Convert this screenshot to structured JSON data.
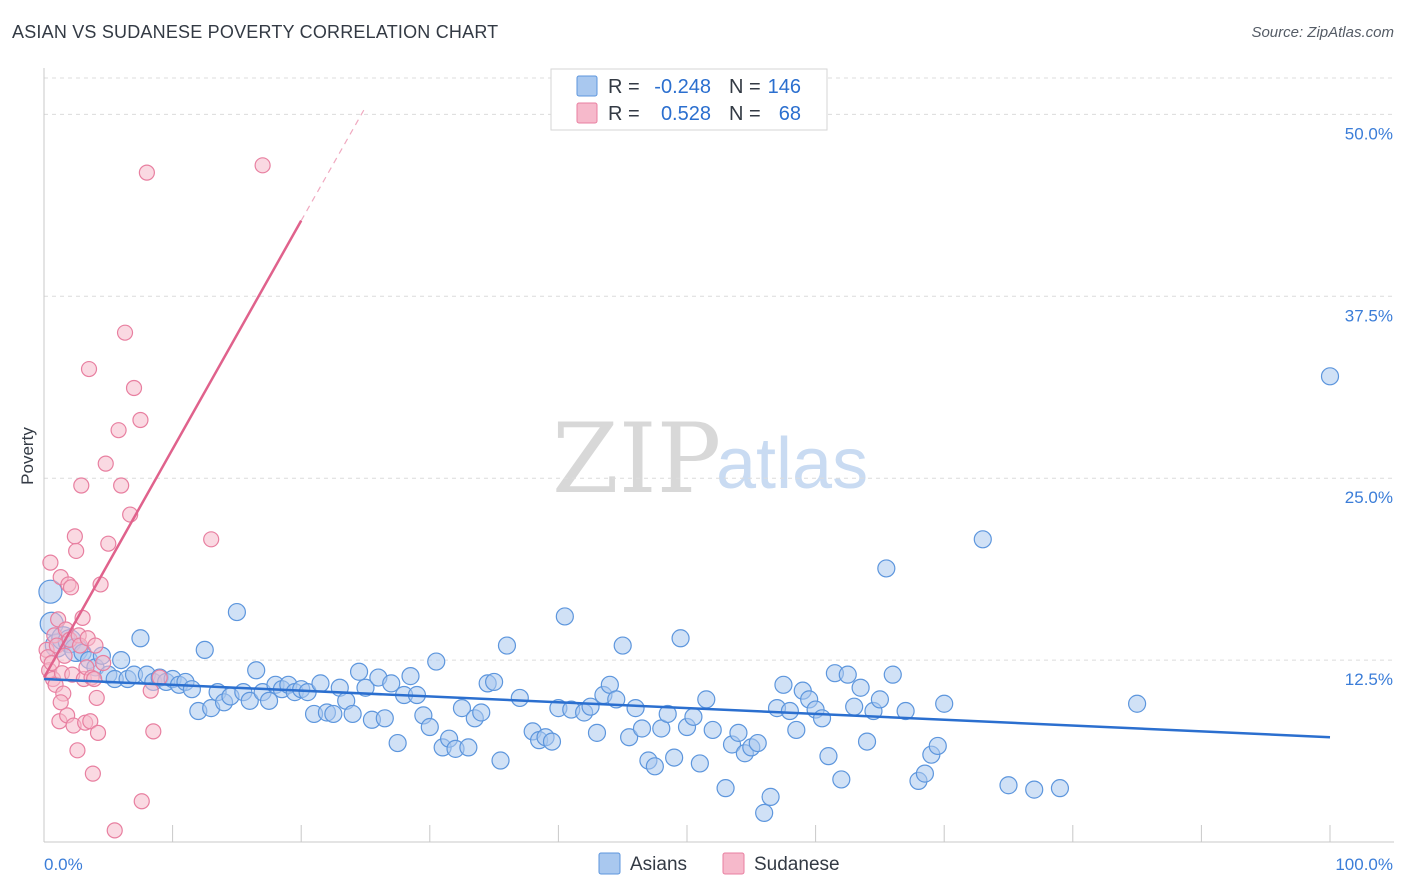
{
  "title": "ASIAN VS SUDANESE POVERTY CORRELATION CHART",
  "source": "Source: ZipAtlas.com",
  "watermark": {
    "zip": "ZIP",
    "atlas": "atlas"
  },
  "colors": {
    "asian_fill": "#a9c8ef",
    "asian_stroke": "#5d96dd",
    "asian_line": "#2b6fcf",
    "sudanese_fill": "#f6b9cb",
    "sudanese_stroke": "#e87fa0",
    "sudanese_line": "#e0628c",
    "tick_text": "#3b7dd8",
    "grid": "#dcdcdc"
  },
  "legend": {
    "rows": [
      {
        "r_label": "R = ",
        "r_value": "-0.248",
        "n_label": "N = ",
        "n_value": "146"
      },
      {
        "r_label": "R = ",
        "r_value": "0.528",
        "n_label": "N = ",
        "n_value": "68"
      }
    ]
  },
  "chart_data": {
    "type": "scatter",
    "title": "ASIAN VS SUDANESE POVERTY CORRELATION CHART",
    "xlabel": "",
    "ylabel": "Poverty",
    "xlim": [
      0,
      100
    ],
    "ylim": [
      0,
      52.5
    ],
    "x_tick_labels": [
      "0.0%",
      "100.0%"
    ],
    "y_ticks": [
      12.5,
      25.0,
      37.5,
      50.0
    ],
    "y_tick_labels": [
      "12.5%",
      "25.0%",
      "37.5%",
      "50.0%"
    ],
    "grid": "horizontal dashed",
    "legend_position": "top-center",
    "series": [
      {
        "name": "Asians",
        "r": -0.248,
        "n": 146,
        "trend": {
          "x": [
            0,
            100
          ],
          "y": [
            11.2,
            7.2
          ]
        },
        "points": [
          [
            0.5,
            17.2
          ],
          [
            0.6,
            15.0
          ],
          [
            1.0,
            13.5
          ],
          [
            1.5,
            14.0
          ],
          [
            2.0,
            13.8
          ],
          [
            2.5,
            13.2
          ],
          [
            3.0,
            13.0
          ],
          [
            3.5,
            12.5
          ],
          [
            4.0,
            12.0
          ],
          [
            4.5,
            12.8
          ],
          [
            5.0,
            11.5
          ],
          [
            5.5,
            11.2
          ],
          [
            6.0,
            12.5
          ],
          [
            6.5,
            11.2
          ],
          [
            7.0,
            11.5
          ],
          [
            7.5,
            14.0
          ],
          [
            8.0,
            11.5
          ],
          [
            8.5,
            11.0
          ],
          [
            9.0,
            11.3
          ],
          [
            9.5,
            11.0
          ],
          [
            10.0,
            11.2
          ],
          [
            10.5,
            10.8
          ],
          [
            11.0,
            11.0
          ],
          [
            11.5,
            10.5
          ],
          [
            12.0,
            9.0
          ],
          [
            12.5,
            13.2
          ],
          [
            13.0,
            9.2
          ],
          [
            13.5,
            10.3
          ],
          [
            14.0,
            9.6
          ],
          [
            14.5,
            10.0
          ],
          [
            15.0,
            15.8
          ],
          [
            15.5,
            10.3
          ],
          [
            16.0,
            9.7
          ],
          [
            16.5,
            11.8
          ],
          [
            17.0,
            10.3
          ],
          [
            17.5,
            9.7
          ],
          [
            18.0,
            10.8
          ],
          [
            18.5,
            10.5
          ],
          [
            19.0,
            10.8
          ],
          [
            19.5,
            10.3
          ],
          [
            20.0,
            10.5
          ],
          [
            20.5,
            10.3
          ],
          [
            21.0,
            8.8
          ],
          [
            21.5,
            10.9
          ],
          [
            22.0,
            8.9
          ],
          [
            22.5,
            8.8
          ],
          [
            23.0,
            10.6
          ],
          [
            23.5,
            9.7
          ],
          [
            24.0,
            8.8
          ],
          [
            24.5,
            11.7
          ],
          [
            25.0,
            10.6
          ],
          [
            25.5,
            8.4
          ],
          [
            26.0,
            11.3
          ],
          [
            26.5,
            8.5
          ],
          [
            27.0,
            10.9
          ],
          [
            27.5,
            6.8
          ],
          [
            28.0,
            10.1
          ],
          [
            28.5,
            11.4
          ],
          [
            29.0,
            10.1
          ],
          [
            29.5,
            8.7
          ],
          [
            30.0,
            7.9
          ],
          [
            30.5,
            12.4
          ],
          [
            31.0,
            6.5
          ],
          [
            31.5,
            7.1
          ],
          [
            32.0,
            6.4
          ],
          [
            32.5,
            9.2
          ],
          [
            33.0,
            6.5
          ],
          [
            33.5,
            8.5
          ],
          [
            34.0,
            8.9
          ],
          [
            34.5,
            10.9
          ],
          [
            35.0,
            11.0
          ],
          [
            35.5,
            5.6
          ],
          [
            36.0,
            13.5
          ],
          [
            37.0,
            9.9
          ],
          [
            38.0,
            7.6
          ],
          [
            38.5,
            7.0
          ],
          [
            39.0,
            7.2
          ],
          [
            39.5,
            6.9
          ],
          [
            40.0,
            9.2
          ],
          [
            40.5,
            15.5
          ],
          [
            41.0,
            9.1
          ],
          [
            42.0,
            8.9
          ],
          [
            42.5,
            9.3
          ],
          [
            43.0,
            7.5
          ],
          [
            43.5,
            10.1
          ],
          [
            44.0,
            10.8
          ],
          [
            44.5,
            9.8
          ],
          [
            45.0,
            13.5
          ],
          [
            45.5,
            7.2
          ],
          [
            46.0,
            9.2
          ],
          [
            46.5,
            7.8
          ],
          [
            47.0,
            5.6
          ],
          [
            47.5,
            5.2
          ],
          [
            48.0,
            7.8
          ],
          [
            48.5,
            8.8
          ],
          [
            49.0,
            5.8
          ],
          [
            49.5,
            14.0
          ],
          [
            50.0,
            7.9
          ],
          [
            50.5,
            8.6
          ],
          [
            51.0,
            5.4
          ],
          [
            51.5,
            9.8
          ],
          [
            52.0,
            7.7
          ],
          [
            53.0,
            3.7
          ],
          [
            53.5,
            6.7
          ],
          [
            54.0,
            7.5
          ],
          [
            54.5,
            6.1
          ],
          [
            55.0,
            6.5
          ],
          [
            55.5,
            6.8
          ],
          [
            56.0,
            2.0
          ],
          [
            56.5,
            3.1
          ],
          [
            57.0,
            9.2
          ],
          [
            57.5,
            10.8
          ],
          [
            58.0,
            9.0
          ],
          [
            58.5,
            7.7
          ],
          [
            59.0,
            10.4
          ],
          [
            59.5,
            9.8
          ],
          [
            60.0,
            9.1
          ],
          [
            60.5,
            8.5
          ],
          [
            61.0,
            5.9
          ],
          [
            61.5,
            11.6
          ],
          [
            62.0,
            4.3
          ],
          [
            62.5,
            11.5
          ],
          [
            63.0,
            9.3
          ],
          [
            63.5,
            10.6
          ],
          [
            64.0,
            6.9
          ],
          [
            64.5,
            9.0
          ],
          [
            65.0,
            9.8
          ],
          [
            65.5,
            18.8
          ],
          [
            66.0,
            11.5
          ],
          [
            67.0,
            9.0
          ],
          [
            68.0,
            4.2
          ],
          [
            68.5,
            4.7
          ],
          [
            69.0,
            6.0
          ],
          [
            69.5,
            6.6
          ],
          [
            70.0,
            9.5
          ],
          [
            73.0,
            20.8
          ],
          [
            75.0,
            3.9
          ],
          [
            77.0,
            3.6
          ],
          [
            79.0,
            3.7
          ],
          [
            85.0,
            9.5
          ],
          [
            100.0,
            32.0
          ]
        ]
      },
      {
        "name": "Sudanese",
        "r": 0.528,
        "n": 68,
        "trend": {
          "x": [
            0,
            20
          ],
          "y": [
            11.3,
            42.7
          ]
        },
        "trend_dashed": {
          "x": [
            20,
            25
          ],
          "y": [
            42.7,
            50.5
          ]
        },
        "points": [
          [
            0.2,
            13.2
          ],
          [
            0.3,
            12.7
          ],
          [
            0.4,
            11.8
          ],
          [
            0.5,
            19.2
          ],
          [
            0.6,
            12.3
          ],
          [
            0.7,
            11.2
          ],
          [
            0.8,
            14.2
          ],
          [
            0.9,
            10.8
          ],
          [
            1.0,
            13.5
          ],
          [
            1.1,
            15.3
          ],
          [
            1.2,
            8.3
          ],
          [
            1.3,
            18.2
          ],
          [
            1.4,
            11.6
          ],
          [
            1.5,
            10.2
          ],
          [
            1.6,
            12.8
          ],
          [
            1.7,
            14.6
          ],
          [
            1.8,
            8.7
          ],
          [
            1.9,
            17.7
          ],
          [
            2.0,
            13.9
          ],
          [
            2.1,
            17.5
          ],
          [
            2.2,
            11.5
          ],
          [
            2.3,
            8.0
          ],
          [
            2.4,
            21.0
          ],
          [
            2.5,
            20.0
          ],
          [
            2.6,
            6.3
          ],
          [
            2.7,
            14.2
          ],
          [
            2.8,
            13.5
          ],
          [
            2.9,
            24.5
          ],
          [
            3.0,
            15.4
          ],
          [
            3.1,
            11.2
          ],
          [
            3.2,
            8.2
          ],
          [
            3.3,
            12.0
          ],
          [
            3.4,
            14.0
          ],
          [
            3.5,
            32.5
          ],
          [
            3.6,
            8.3
          ],
          [
            3.7,
            11.3
          ],
          [
            3.8,
            4.7
          ],
          [
            3.9,
            11.2
          ],
          [
            4.0,
            13.5
          ],
          [
            4.1,
            9.9
          ],
          [
            4.2,
            7.5
          ],
          [
            4.4,
            17.7
          ],
          [
            4.6,
            12.3
          ],
          [
            4.8,
            26.0
          ],
          [
            5.0,
            20.5
          ],
          [
            5.5,
            0.8
          ],
          [
            5.8,
            28.3
          ],
          [
            6.0,
            24.5
          ],
          [
            6.3,
            35.0
          ],
          [
            6.7,
            22.5
          ],
          [
            7.0,
            31.2
          ],
          [
            7.5,
            29.0
          ],
          [
            7.6,
            2.8
          ],
          [
            8.0,
            46.0
          ],
          [
            8.3,
            10.4
          ],
          [
            13.0,
            20.8
          ],
          [
            17.0,
            46.5
          ],
          [
            8.5,
            7.6
          ],
          [
            9.0,
            11.3
          ],
          [
            1.3,
            9.6
          ]
        ]
      }
    ]
  }
}
